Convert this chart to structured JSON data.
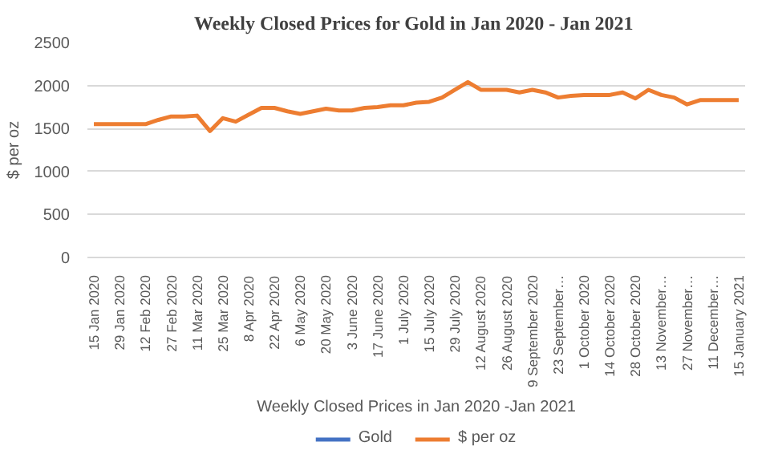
{
  "chart_data": {
    "type": "line",
    "title": "Weekly Closed Prices for Gold  in Jan 2020 - Jan 2021",
    "xlabel": "Weekly Closed Prices in Jan 2020 -Jan 2021",
    "ylabel": "$ per oz",
    "categories": [
      "15 Jan 2020",
      null,
      "29 Jan 2020",
      null,
      "12 Feb 2020",
      null,
      "27 Feb 2020",
      null,
      "11 Mar 2020",
      null,
      "25 Mar 2020",
      null,
      "8 Apr 2020",
      null,
      "22 Apr 2020",
      null,
      "6 May 2020",
      null,
      "20 May 2020",
      null,
      "3 June 2020",
      null,
      "17 June 2020",
      null,
      "1 July 2020",
      null,
      "15 July 2020",
      null,
      "29 July 2020",
      null,
      "12 August 2020",
      null,
      "26 August 2020",
      null,
      "9 September 2020",
      null,
      "23 September…",
      null,
      "1 October 2020",
      null,
      "14 October 2020",
      null,
      "28 October 2020",
      null,
      "13 November…",
      null,
      "27 November…",
      null,
      "11 December…",
      null,
      "15 January 2021"
    ],
    "series": [
      {
        "name": "Gold",
        "color": "#4472c4",
        "values": [
          null,
          null,
          null,
          null,
          null,
          null,
          null,
          null,
          null,
          null,
          null,
          null,
          null,
          null,
          null,
          null,
          null,
          null,
          null,
          null,
          null,
          null,
          null,
          null,
          null,
          null,
          null,
          null,
          null,
          null,
          null,
          null,
          null,
          null,
          null,
          null,
          null,
          null,
          null,
          null,
          null,
          null,
          null,
          null,
          null,
          null,
          null,
          null,
          null,
          null,
          null
        ]
      },
      {
        "name": "$ per oz",
        "color": "#ed7d31",
        "values": [
          1550,
          1550,
          1550,
          1550,
          1550,
          1600,
          1640,
          1640,
          1650,
          1470,
          1620,
          1580,
          1660,
          1740,
          1740,
          1700,
          1670,
          1700,
          1730,
          1710,
          1710,
          1740,
          1750,
          1770,
          1770,
          1800,
          1810,
          1860,
          1950,
          2040,
          1950,
          1950,
          1950,
          1920,
          1950,
          1920,
          1860,
          1880,
          1890,
          1890,
          1890,
          1920,
          1850,
          1950,
          1890,
          1860,
          1780,
          1830,
          1830,
          1830,
          1830
        ]
      }
    ],
    "ylim": [
      0,
      2500
    ],
    "yticks": [
      0,
      500,
      1000,
      1500,
      2000,
      2500
    ],
    "grid": "y",
    "legend": "bottom",
    "line_style": "solid"
  }
}
